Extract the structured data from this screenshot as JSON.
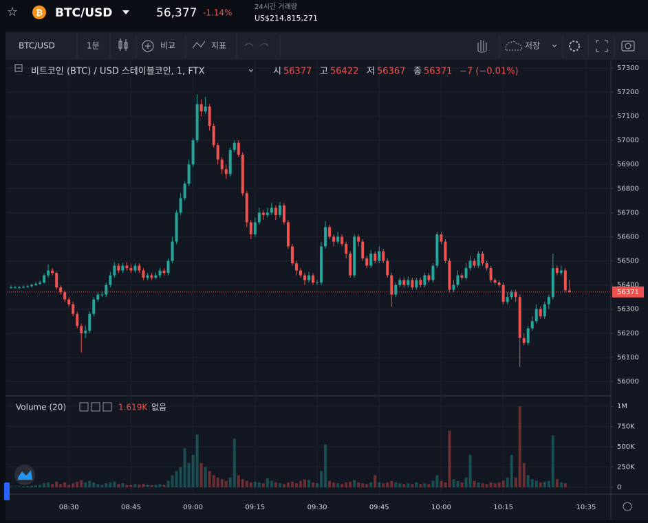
{
  "header": {
    "symbol": "BTC/USD",
    "price": "56,377",
    "change": "-1.14%",
    "volume_label": "24시간 거래량",
    "volume": "US$214,815,271"
  },
  "toolbar": {
    "symbol": "BTC/USD",
    "interval": "1분",
    "compare": "비교",
    "indicators": "지표",
    "save": "저장"
  },
  "chart_data": {
    "type": "candlestick",
    "title": "비트코인 (BTC) / USD 스테이블코인, 1, FTX",
    "legend": {
      "open_label": "시",
      "high_label": "고",
      "low_label": "저",
      "close_label": "종",
      "change": "−7 (−0.01%)"
    },
    "up_color": "#26a69a",
    "down_color": "#ef5350",
    "grid": true,
    "x": [
      "08:16",
      "08:17",
      "08:18",
      "08:19",
      "08:20",
      "08:21",
      "08:22",
      "08:23",
      "08:24",
      "08:25",
      "08:26",
      "08:27",
      "08:28",
      "08:29",
      "08:30",
      "08:31",
      "08:32",
      "08:33",
      "08:34",
      "08:35",
      "08:36",
      "08:37",
      "08:38",
      "08:39",
      "08:40",
      "08:41",
      "08:42",
      "08:43",
      "08:44",
      "08:45",
      "08:46",
      "08:47",
      "08:48",
      "08:49",
      "08:50",
      "08:51",
      "08:52",
      "08:53",
      "08:54",
      "08:55",
      "08:56",
      "08:57",
      "08:58",
      "08:59",
      "09:00",
      "09:01",
      "09:02",
      "09:03",
      "09:04",
      "09:05",
      "09:06",
      "09:07",
      "09:08",
      "09:09",
      "09:10",
      "09:11",
      "09:12",
      "09:13",
      "09:14",
      "09:15",
      "09:16",
      "09:17",
      "09:18",
      "09:19",
      "09:20",
      "09:21",
      "09:22",
      "09:23",
      "09:24",
      "09:25",
      "09:26",
      "09:27",
      "09:28",
      "09:29",
      "09:30",
      "09:31",
      "09:32",
      "09:33",
      "09:34",
      "09:35",
      "09:36",
      "09:37",
      "09:38",
      "09:39",
      "09:40",
      "09:41",
      "09:42",
      "09:43",
      "09:44",
      "09:45",
      "09:46",
      "09:47",
      "09:48",
      "09:49",
      "09:50",
      "09:51",
      "09:52",
      "09:53",
      "09:54",
      "09:55",
      "09:56",
      "09:57",
      "09:58",
      "09:59",
      "10:00",
      "10:01",
      "10:02",
      "10:03",
      "10:04",
      "10:05",
      "10:06",
      "10:07",
      "10:08",
      "10:09",
      "10:10",
      "10:11",
      "10:12",
      "10:13",
      "10:14",
      "10:15",
      "10:16",
      "10:17",
      "10:18",
      "10:19",
      "10:20",
      "10:21",
      "10:22",
      "10:23",
      "10:24",
      "10:25",
      "10:26",
      "10:27",
      "10:28",
      "10:29",
      "10:30",
      "10:31"
    ],
    "open": [
      56390,
      56390,
      56390,
      56390,
      56392,
      56395,
      56400,
      56405,
      56410,
      56440,
      56460,
      56450,
      56390,
      56370,
      56340,
      56320,
      56280,
      56230,
      56200,
      56210,
      56280,
      56340,
      56360,
      56360,
      56400,
      56440,
      56480,
      56460,
      56480,
      56470,
      56460,
      56480,
      56460,
      56430,
      56440,
      56430,
      56440,
      56460,
      56450,
      56500,
      56580,
      56700,
      56760,
      56820,
      56900,
      57000,
      57150,
      57120,
      57140,
      57060,
      56980,
      56920,
      56880,
      56860,
      56960,
      56990,
      56940,
      56780,
      56660,
      56610,
      56660,
      56700,
      56690,
      56700,
      56720,
      56690,
      56730,
      56660,
      56560,
      56490,
      56460,
      56440,
      56420,
      56440,
      56410,
      56410,
      56560,
      56640,
      56600,
      56580,
      56600,
      56570,
      56530,
      56440,
      56600,
      56580,
      56510,
      56480,
      56530,
      56500,
      56540,
      56500,
      56440,
      56360,
      56400,
      56420,
      56400,
      56420,
      56390,
      56420,
      56400,
      56440,
      56420,
      56480,
      56610,
      56580,
      56500,
      56380,
      56400,
      56440,
      56430,
      56470,
      56500,
      56480,
      56530,
      56490,
      56470,
      56420,
      56410,
      56400,
      56330,
      56350,
      56370,
      56350,
      56180,
      56160,
      56220,
      56250,
      56300,
      56270,
      56320,
      56350,
      56470,
      56450,
      56460,
      56377
    ],
    "high": [
      56398,
      56396,
      56396,
      56398,
      56400,
      56405,
      56412,
      56418,
      56448,
      56485,
      56470,
      56455,
      56398,
      56378,
      56350,
      56330,
      56290,
      56240,
      56230,
      56290,
      56350,
      56370,
      56375,
      56410,
      56455,
      56495,
      56490,
      56492,
      56495,
      56485,
      56490,
      56490,
      56470,
      56450,
      56450,
      56452,
      56470,
      56470,
      56510,
      56600,
      56710,
      56780,
      56830,
      56920,
      57010,
      57190,
      57170,
      57180,
      57150,
      57070,
      56990,
      56930,
      56900,
      56970,
      57000,
      57000,
      56950,
      56790,
      56670,
      56680,
      56720,
      56710,
      56720,
      56740,
      56730,
      56745,
      56740,
      56670,
      56570,
      56500,
      56470,
      56450,
      56455,
      56450,
      56420,
      56580,
      56665,
      56650,
      56610,
      56620,
      56610,
      56580,
      56540,
      56610,
      56610,
      56590,
      56520,
      56545,
      56540,
      56560,
      56550,
      56510,
      56450,
      56410,
      56430,
      56430,
      56435,
      56430,
      56430,
      56430,
      56450,
      56450,
      56490,
      56620,
      56620,
      56590,
      56510,
      56420,
      56460,
      56450,
      56490,
      56520,
      56510,
      56540,
      56540,
      56500,
      56480,
      56430,
      56420,
      56410,
      56370,
      56380,
      56380,
      56360,
      56200,
      56230,
      56270,
      56320,
      56310,
      56330,
      56360,
      56530,
      56480,
      56480,
      56470,
      56422
    ],
    "low": [
      56385,
      56386,
      56385,
      56387,
      56388,
      56390,
      56396,
      56400,
      56405,
      56430,
      56440,
      56380,
      56360,
      56330,
      56310,
      56270,
      56220,
      56120,
      56180,
      56200,
      56270,
      56330,
      56350,
      56350,
      56390,
      56430,
      56450,
      56450,
      56460,
      56450,
      56450,
      56450,
      56420,
      56420,
      56420,
      56425,
      56430,
      56440,
      56440,
      56490,
      56570,
      56690,
      56750,
      56810,
      56890,
      56990,
      57100,
      57110,
      57040,
      56970,
      56900,
      56860,
      56840,
      56850,
      56950,
      56930,
      56770,
      56640,
      56590,
      56600,
      56650,
      56670,
      56680,
      56690,
      56670,
      56680,
      56650,
      56550,
      56480,
      56440,
      56430,
      56400,
      56410,
      56400,
      56400,
      56400,
      56550,
      56590,
      56560,
      56570,
      56560,
      56510,
      56430,
      56430,
      56560,
      56500,
      56470,
      56470,
      56490,
      56490,
      56490,
      56430,
      56310,
      56350,
      56390,
      56390,
      56390,
      56380,
      56380,
      56390,
      56390,
      56410,
      56410,
      56470,
      56570,
      56490,
      56370,
      56370,
      56390,
      56420,
      56420,
      56460,
      56470,
      56470,
      56480,
      56460,
      56410,
      56400,
      56390,
      56320,
      56320,
      56340,
      56330,
      56060,
      56150,
      56150,
      56210,
      56240,
      56260,
      56260,
      56300,
      56340,
      56440,
      56440,
      56370,
      56367
    ],
    "close": [
      56390,
      56390,
      56390,
      56392,
      56395,
      56400,
      56405,
      56410,
      56440,
      56460,
      56450,
      56390,
      56370,
      56340,
      56320,
      56280,
      56230,
      56200,
      56210,
      56280,
      56340,
      56360,
      56360,
      56400,
      56440,
      56480,
      56460,
      56480,
      56470,
      56460,
      56480,
      56460,
      56430,
      56440,
      56430,
      56440,
      56460,
      56450,
      56500,
      56580,
      56700,
      56760,
      56820,
      56900,
      57000,
      57150,
      57120,
      57140,
      57060,
      56980,
      56920,
      56880,
      56860,
      56960,
      56990,
      56940,
      56780,
      56660,
      56610,
      56660,
      56700,
      56690,
      56700,
      56720,
      56690,
      56730,
      56660,
      56560,
      56490,
      56460,
      56440,
      56420,
      56440,
      56410,
      56410,
      56560,
      56640,
      56600,
      56580,
      56600,
      56570,
      56530,
      56440,
      56600,
      56580,
      56510,
      56480,
      56530,
      56500,
      56540,
      56500,
      56440,
      56360,
      56400,
      56420,
      56400,
      56420,
      56390,
      56420,
      56400,
      56440,
      56420,
      56480,
      56610,
      56580,
      56500,
      56380,
      56400,
      56440,
      56430,
      56470,
      56500,
      56480,
      56530,
      56490,
      56470,
      56420,
      56410,
      56400,
      56330,
      56350,
      56370,
      56350,
      56180,
      56160,
      56220,
      56250,
      56300,
      56270,
      56320,
      56350,
      56470,
      56450,
      56460,
      56378,
      56371
    ],
    "ylim": [
      55943,
      57331
    ],
    "yticks": [
      56000,
      56100,
      56200,
      56300,
      56400,
      56500,
      56600,
      56700,
      56800,
      56900,
      57000,
      57100,
      57200,
      57300
    ],
    "xlim": [
      "08:15",
      "10:41"
    ],
    "xticks": [
      "08:30",
      "08:45",
      "09:00",
      "09:15",
      "09:30",
      "09:45",
      "10:00",
      "10:15",
      "10:35"
    ],
    "volume": {
      "name": "Volume (20)",
      "legend_value": "1.619K",
      "legend_extra": "없음",
      "values": [
        10000,
        8000,
        8000,
        12000,
        15000,
        20000,
        25000,
        30000,
        50000,
        60000,
        40000,
        70000,
        40000,
        60000,
        30000,
        50000,
        70000,
        90000,
        60000,
        80000,
        60000,
        40000,
        30000,
        50000,
        60000,
        70000,
        40000,
        50000,
        30000,
        30000,
        40000,
        35000,
        45000,
        30000,
        25000,
        30000,
        40000,
        30000,
        80000,
        150000,
        200000,
        250000,
        480000,
        300000,
        400000,
        650000,
        300000,
        250000,
        200000,
        150000,
        120000,
        100000,
        80000,
        120000,
        600000,
        150000,
        100000,
        80000,
        60000,
        70000,
        60000,
        50000,
        110000,
        80000,
        60000,
        50000,
        40000,
        60000,
        70000,
        50000,
        80000,
        100000,
        90000,
        60000,
        50000,
        200000,
        530000,
        80000,
        60000,
        50000,
        40000,
        60000,
        70000,
        90000,
        60000,
        50000,
        40000,
        60000,
        150000,
        60000,
        50000,
        60000,
        80000,
        60000,
        50000,
        40000,
        50000,
        40000,
        60000,
        40000,
        50000,
        40000,
        80000,
        150000,
        80000,
        60000,
        700000,
        100000,
        80000,
        60000,
        120000,
        400000,
        80000,
        60000,
        50000,
        40000,
        60000,
        50000,
        60000,
        80000,
        120000,
        400000,
        120000,
        1000000,
        300000,
        150000,
        100000,
        80000,
        60000,
        70000,
        80000,
        640000,
        100000,
        60000,
        50000,
        1619
      ],
      "ylim": [
        -76000,
        1120000
      ],
      "yticks": [
        0,
        {
          "value": 250000,
          "label": "250K"
        },
        {
          "value": 500000,
          "label": "500K"
        },
        {
          "value": 750000,
          "label": "750K"
        },
        {
          "value": 1000000,
          "label": "1M"
        }
      ]
    }
  }
}
